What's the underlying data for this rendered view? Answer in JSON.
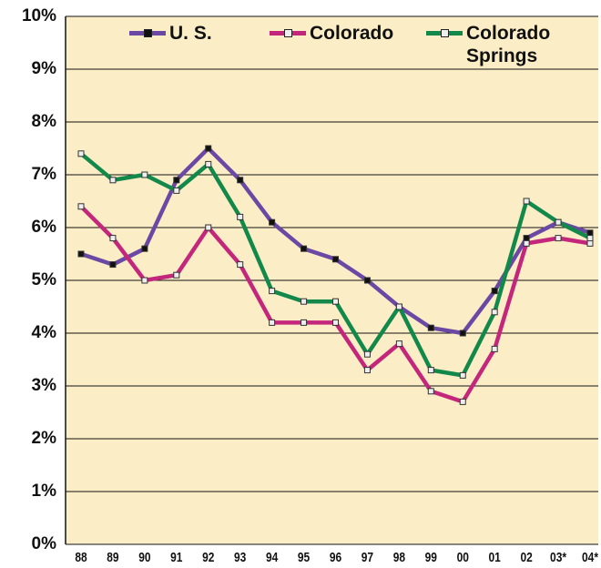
{
  "chart_data": {
    "type": "line",
    "categories": [
      "88",
      "89",
      "90",
      "91",
      "92",
      "93",
      "94",
      "95",
      "96",
      "97",
      "98",
      "99",
      "00",
      "01",
      "02",
      "03*",
      "04*"
    ],
    "series": [
      {
        "name": "U. S.",
        "color": "#6a48a4",
        "values": [
          5.5,
          5.3,
          5.6,
          6.9,
          7.5,
          6.9,
          6.1,
          5.6,
          5.4,
          5.0,
          4.5,
          4.1,
          4.0,
          4.8,
          5.8,
          6.1,
          5.9
        ]
      },
      {
        "name": "Colorado",
        "color": "#c4267c",
        "values": [
          6.4,
          5.8,
          5.0,
          5.1,
          6.0,
          5.3,
          4.2,
          4.2,
          4.2,
          3.3,
          3.8,
          2.9,
          2.7,
          3.7,
          5.7,
          5.8,
          5.7
        ]
      },
      {
        "name": "Colorado Springs",
        "color": "#12894a",
        "values": [
          7.4,
          6.9,
          7.0,
          6.7,
          7.2,
          6.2,
          4.8,
          4.6,
          4.6,
          3.6,
          4.5,
          3.3,
          3.2,
          4.4,
          6.5,
          6.1,
          5.8
        ]
      }
    ],
    "ylim": [
      0,
      10
    ],
    "yticks": [
      {
        "value": 0,
        "label": "0%"
      },
      {
        "value": 1,
        "label": "1%"
      },
      {
        "value": 2,
        "label": "2%"
      },
      {
        "value": 3,
        "label": "3%"
      },
      {
        "value": 4,
        "label": "4%"
      },
      {
        "value": 5,
        "label": "5%"
      },
      {
        "value": 6,
        "label": "6%"
      },
      {
        "value": 7,
        "label": "7%"
      },
      {
        "value": 8,
        "label": "8%"
      },
      {
        "value": 9,
        "label": "9%"
      },
      {
        "value": 10,
        "label": "10%"
      }
    ],
    "grid": true
  }
}
